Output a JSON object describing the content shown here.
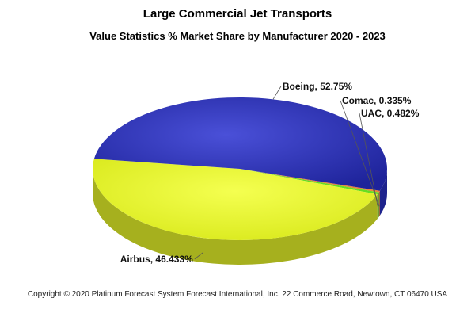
{
  "chart_data": {
    "type": "pie",
    "title": "Large Commercial Jet Transports",
    "subtitle": "Value Statistics % Market Share by Manufacturer 2020 - 2023",
    "slices": [
      {
        "name": "Comac",
        "value": 0.335,
        "label": "Comac, 0.335%",
        "color": "#e8853a"
      },
      {
        "name": "UAC",
        "value": 0.482,
        "label": "UAC, 0.482%",
        "color": "#66dd22"
      },
      {
        "name": "Airbus",
        "value": 46.433,
        "label": "Airbus, 46.433%",
        "color": "#e6f52a"
      },
      {
        "name": "Boeing",
        "value": 52.75,
        "label": "Boeing, 52.75%",
        "color": "#2a31c4"
      }
    ],
    "style": "3d"
  },
  "footer": {
    "copyright": "Copyright © 2020  Platinum Forecast System  Forecast International, Inc.  22 Commerce Road, Newtown, CT 06470 USA"
  }
}
